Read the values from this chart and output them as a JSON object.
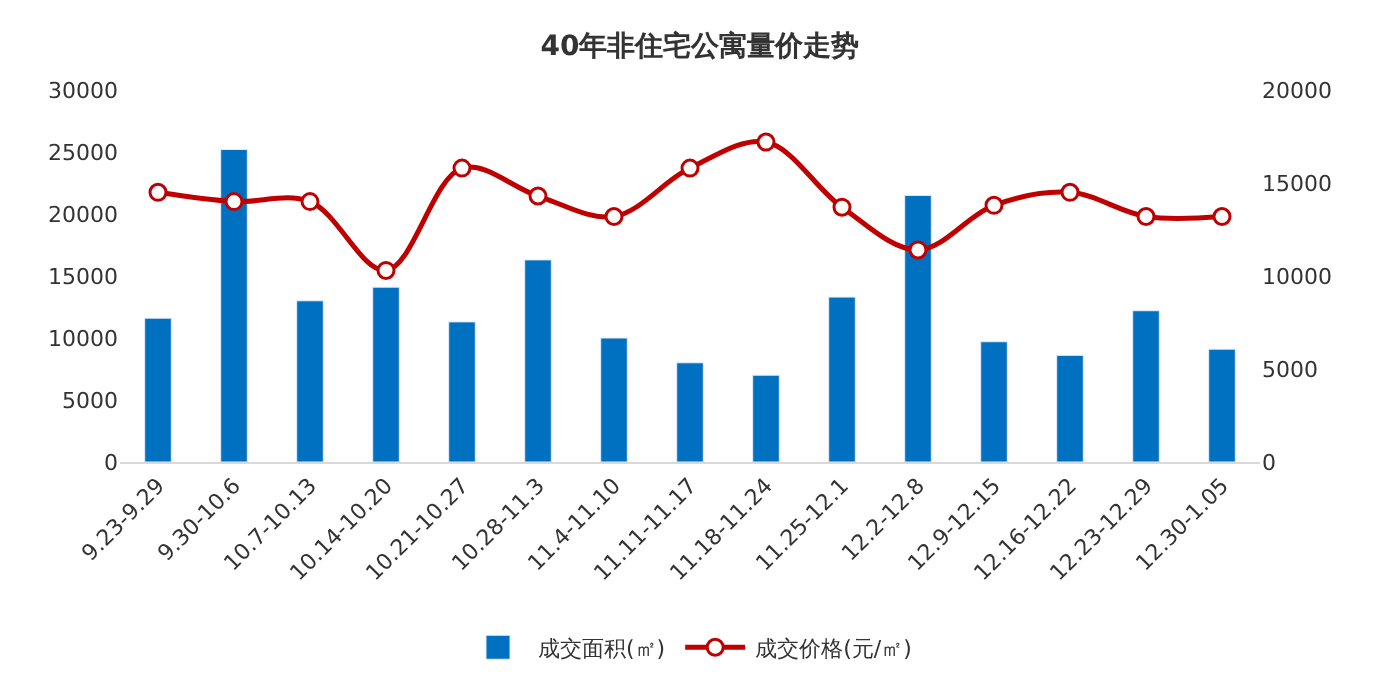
{
  "chart_data": {
    "type": "bar",
    "title": "40年非住宅公寓量价走势",
    "categories": [
      "9.23-9.29",
      "9.30-10.6",
      "10.7-10.13",
      "10.14-10.20",
      "10.21-10.27",
      "10.28-11.3",
      "11.4-11.10",
      "11.11-11.17",
      "11.18-11.24",
      "11.25-12.1",
      "12.2-12.8",
      "12.9-12.15",
      "12.16-12.22",
      "12.23-12.29",
      "12.30-1.05"
    ],
    "series": [
      {
        "name": "成交面积(㎡)",
        "color": "#0070c0",
        "values": [
          11600,
          25200,
          13000,
          14100,
          11300,
          16300,
          10000,
          8000,
          7000,
          13300,
          21500,
          9700,
          8600,
          12200,
          9100
        ]
      },
      {
        "name": "成交价格(元/㎡)",
        "type": "line",
        "axis": "y2",
        "color": "#c00000",
        "marker": "circle",
        "values": [
          14500,
          14000,
          14000,
          10300,
          15800,
          14300,
          13200,
          15800,
          17200,
          13700,
          11400,
          13800,
          14500,
          13200,
          13200
        ]
      }
    ],
    "ylim": [
      0,
      30000
    ],
    "yticks": [
      0,
      5000,
      10000,
      15000,
      20000,
      25000,
      30000
    ],
    "y2lim": [
      0,
      20000
    ],
    "y2ticks": [
      0,
      5000,
      10000,
      15000,
      20000
    ],
    "legend": "bottom"
  }
}
